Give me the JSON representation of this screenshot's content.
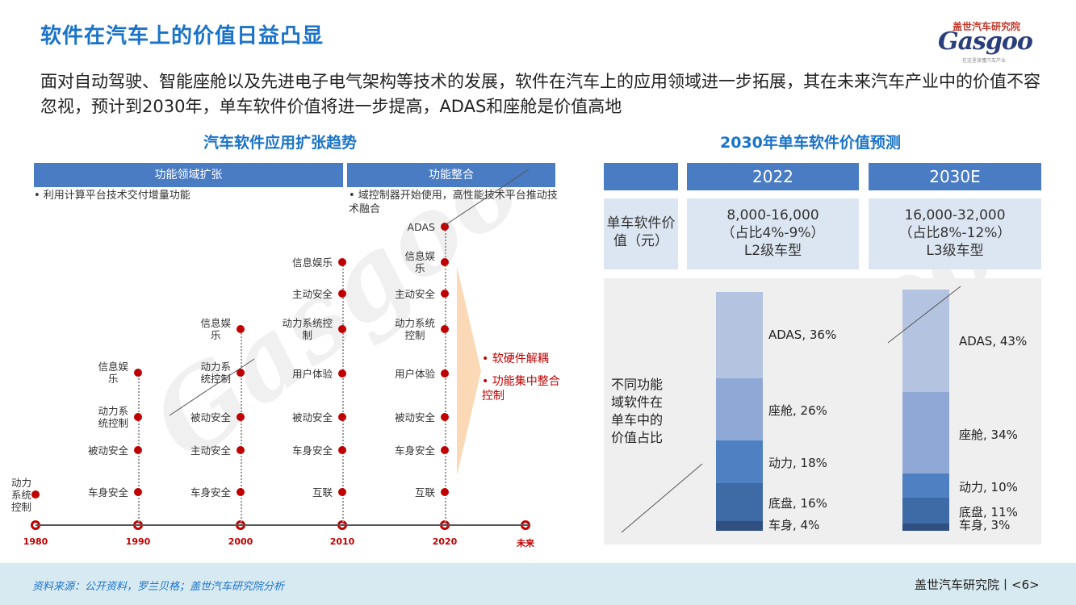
{
  "header": {
    "title": "软件在汽车上的价值日益凸显",
    "logo_cn": "盖世汽车研究院",
    "logo_en": "Gasgoo",
    "logo_sub": "在这里读懂汽车产业"
  },
  "subtitle": "面对自动驾驶、智能座舱以及先进电子电气架构等技术的发展，软件在汽车上的应用领域进一步拓展，其在未来汽车产业中的价值不容忽视，预计到2030年，单车软件价值将进一步提高，ADAS和座舱是价值高地",
  "left": {
    "title": "汽车软件应用扩张趋势",
    "header_expand": "功能领域扩张",
    "header_merge": "功能整合",
    "note_expand": "•  利用计算平台技术交付增量功能",
    "note_merge": "•  域控制器开始使用，高性能技术平台推动技术融合",
    "years": [
      "1980",
      "1990",
      "2000",
      "2010",
      "2020",
      "未来"
    ],
    "col1980": [
      "动力\n系统\n控制"
    ],
    "col1990": [
      "信息娱\n乐",
      "动力系\n统控制",
      "被动安全",
      "车身安全"
    ],
    "col2000": [
      "信息娱\n乐",
      "动力系\n统控制",
      "被动安全",
      "主动安全",
      "车身安全"
    ],
    "col2010": [
      "信息娱乐",
      "主动安全",
      "动力系统控\n制",
      "用户体验",
      "被动安全",
      "车身安全",
      "互联"
    ],
    "col2020": [
      "ADAS",
      "信息娱\n乐",
      "主动安全",
      "动力系统\n控制",
      "用户体验",
      "被动安全",
      "车身安全",
      "互联"
    ],
    "future_points": [
      "软硬件解耦",
      "功能集中整合控制"
    ]
  },
  "right": {
    "title": "2030年单车软件价值预测",
    "col_2022": "2022",
    "col_2030": "2030E",
    "row1_label": "单车软件价值（元）",
    "val_2022": [
      "8,000-16,000",
      "（占比4%-9%）",
      "L2级车型"
    ],
    "val_2030": [
      "16,000-32,000",
      "（占比8%-12%）",
      "L3级车型"
    ],
    "row2_label": "不同功能域软件在单车中的价值占比",
    "stack_2022": [
      {
        "name": "ADAS",
        "label": "ADAS, 36%",
        "value": 36,
        "color": "#b4c3e0"
      },
      {
        "name": "座舱",
        "label": "座舱, 26%",
        "value": 26,
        "color": "#8fa8d6"
      },
      {
        "name": "动力",
        "label": "动力, 18%",
        "value": 18,
        "color": "#4f81c2"
      },
      {
        "name": "底盘",
        "label": "底盘, 16%",
        "value": 16,
        "color": "#3e6aa5"
      },
      {
        "name": "车身",
        "label": "车身, 4%",
        "value": 4,
        "color": "#2e4f80"
      }
    ],
    "stack_2030": [
      {
        "name": "ADAS",
        "label": "ADAS, 43%",
        "value": 43,
        "color": "#b4c3e0"
      },
      {
        "name": "座舱",
        "label": "座舱, 34%",
        "value": 34,
        "color": "#8fa8d6"
      },
      {
        "name": "动力",
        "label": "动力, 10%",
        "value": 10,
        "color": "#4f81c2"
      },
      {
        "name": "底盘",
        "label": "底盘, 11%",
        "value": 11,
        "color": "#3e6aa5"
      },
      {
        "name": "车身",
        "label": "车身, 3%",
        "value": 3,
        "color": "#2e4f80"
      }
    ]
  },
  "footer": {
    "source": "资料来源：公开资料，罗兰贝格；盖世汽车研究院分析",
    "org": "盖世汽车研究院丨<6>"
  },
  "colors": {
    "accent": "#1a73c9",
    "header_bar": "#4a7cc4",
    "dot": "#c00000",
    "cell_bg": "#dce6f2"
  }
}
